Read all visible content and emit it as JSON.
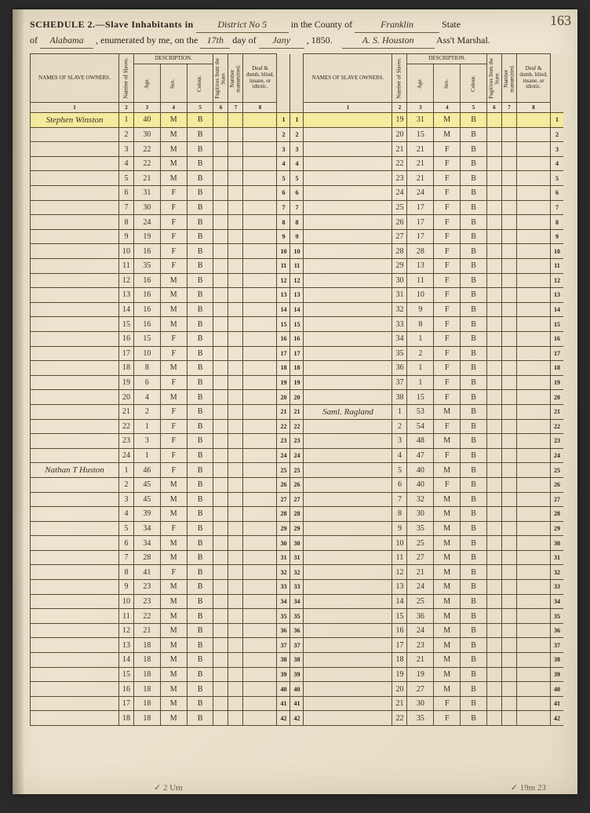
{
  "pagenum": "163",
  "header": {
    "schedule_label": "SCHEDULE 2.—Slave Inhabitants in",
    "district": "District No 5",
    "county_label": "in the County of",
    "county": "Franklin",
    "state_label": "State",
    "state_of": "of",
    "state": "Alabama",
    "enum_label": ", enumerated by me, on the",
    "day": "17th",
    "day_label": "day of",
    "month": "Jany",
    "year_label": ", 185",
    "year_digit": "0.",
    "marshal": "A. S. Houston",
    "marshal_label": "Ass't Marshal."
  },
  "columns": {
    "owner": "NAMES OF SLAVE OWNERS.",
    "num_slaves": "Number of Slaves.",
    "description": "DESCRIPTION.",
    "age": "Age.",
    "sex": "Sex.",
    "colour": "Colour.",
    "fugitive": "Fugitives from the State.",
    "manumitted": "Number manumitted.",
    "deaf": "Deaf & dumb, blind, insane, or idiotic.",
    "nums": [
      "1",
      "2",
      "3",
      "4",
      "5",
      "6",
      "7",
      "8"
    ]
  },
  "left_rows": [
    {
      "owner": "Stephen Winston",
      "n": "1",
      "age": "40",
      "sex": "M",
      "col": "B",
      "hl": true
    },
    {
      "owner": "",
      "n": "2",
      "age": "30",
      "sex": "M",
      "col": "B"
    },
    {
      "owner": "",
      "n": "3",
      "age": "22",
      "sex": "M",
      "col": "B"
    },
    {
      "owner": "",
      "n": "4",
      "age": "22",
      "sex": "M",
      "col": "B"
    },
    {
      "owner": "",
      "n": "5",
      "age": "21",
      "sex": "M",
      "col": "B"
    },
    {
      "owner": "",
      "n": "6",
      "age": "31",
      "sex": "F",
      "col": "B"
    },
    {
      "owner": "",
      "n": "7",
      "age": "30",
      "sex": "F",
      "col": "B"
    },
    {
      "owner": "",
      "n": "8",
      "age": "24",
      "sex": "F",
      "col": "B"
    },
    {
      "owner": "",
      "n": "9",
      "age": "19",
      "sex": "F",
      "col": "B"
    },
    {
      "owner": "",
      "n": "10",
      "age": "16",
      "sex": "F",
      "col": "B"
    },
    {
      "owner": "",
      "n": "11",
      "age": "35",
      "sex": "F",
      "col": "B"
    },
    {
      "owner": "",
      "n": "12",
      "age": "16",
      "sex": "M",
      "col": "B"
    },
    {
      "owner": "",
      "n": "13",
      "age": "16",
      "sex": "M",
      "col": "B"
    },
    {
      "owner": "",
      "n": "14",
      "age": "16",
      "sex": "M",
      "col": "B"
    },
    {
      "owner": "",
      "n": "15",
      "age": "16",
      "sex": "M",
      "col": "B"
    },
    {
      "owner": "",
      "n": "16",
      "age": "15",
      "sex": "F",
      "col": "B"
    },
    {
      "owner": "",
      "n": "17",
      "age": "10",
      "sex": "F",
      "col": "B"
    },
    {
      "owner": "",
      "n": "18",
      "age": "8",
      "sex": "M",
      "col": "B"
    },
    {
      "owner": "",
      "n": "19",
      "age": "6",
      "sex": "F",
      "col": "B"
    },
    {
      "owner": "",
      "n": "20",
      "age": "4",
      "sex": "M",
      "col": "B"
    },
    {
      "owner": "",
      "n": "21",
      "age": "2",
      "sex": "F",
      "col": "B"
    },
    {
      "owner": "",
      "n": "22",
      "age": "1",
      "sex": "F",
      "col": "B"
    },
    {
      "owner": "",
      "n": "23",
      "age": "3",
      "sex": "F",
      "col": "B"
    },
    {
      "owner": "",
      "n": "24",
      "age": "1",
      "sex": "F",
      "col": "B"
    },
    {
      "owner": "Nathan T Huston",
      "n": "1",
      "age": "46",
      "sex": "F",
      "col": "B"
    },
    {
      "owner": "",
      "n": "2",
      "age": "45",
      "sex": "M",
      "col": "B"
    },
    {
      "owner": "",
      "n": "3",
      "age": "45",
      "sex": "M",
      "col": "B"
    },
    {
      "owner": "",
      "n": "4",
      "age": "39",
      "sex": "M",
      "col": "B"
    },
    {
      "owner": "",
      "n": "5",
      "age": "34",
      "sex": "F",
      "col": "B"
    },
    {
      "owner": "",
      "n": "6",
      "age": "34",
      "sex": "M",
      "col": "B"
    },
    {
      "owner": "",
      "n": "7",
      "age": "28",
      "sex": "M",
      "col": "B"
    },
    {
      "owner": "",
      "n": "8",
      "age": "41",
      "sex": "F",
      "col": "B"
    },
    {
      "owner": "",
      "n": "9",
      "age": "23",
      "sex": "M",
      "col": "B"
    },
    {
      "owner": "",
      "n": "10",
      "age": "23",
      "sex": "M",
      "col": "B"
    },
    {
      "owner": "",
      "n": "11",
      "age": "22",
      "sex": "M",
      "col": "B"
    },
    {
      "owner": "",
      "n": "12",
      "age": "21",
      "sex": "M",
      "col": "B"
    },
    {
      "owner": "",
      "n": "13",
      "age": "18",
      "sex": "M",
      "col": "B"
    },
    {
      "owner": "",
      "n": "14",
      "age": "18",
      "sex": "M",
      "col": "B"
    },
    {
      "owner": "",
      "n": "15",
      "age": "18",
      "sex": "M",
      "col": "B"
    },
    {
      "owner": "",
      "n": "16",
      "age": "18",
      "sex": "M",
      "col": "B"
    },
    {
      "owner": "",
      "n": "17",
      "age": "18",
      "sex": "M",
      "col": "B"
    },
    {
      "owner": "",
      "n": "18",
      "age": "18",
      "sex": "M",
      "col": "B"
    }
  ],
  "right_rows": [
    {
      "owner": "",
      "n": "19",
      "age": "31",
      "sex": "M",
      "col": "B",
      "hl": true
    },
    {
      "owner": "",
      "n": "20",
      "age": "15",
      "sex": "M",
      "col": "B"
    },
    {
      "owner": "",
      "n": "21",
      "age": "21",
      "sex": "F",
      "col": "B"
    },
    {
      "owner": "",
      "n": "22",
      "age": "21",
      "sex": "F",
      "col": "B"
    },
    {
      "owner": "",
      "n": "23",
      "age": "21",
      "sex": "F",
      "col": "B"
    },
    {
      "owner": "",
      "n": "24",
      "age": "24",
      "sex": "F",
      "col": "B"
    },
    {
      "owner": "",
      "n": "25",
      "age": "17",
      "sex": "F",
      "col": "B"
    },
    {
      "owner": "",
      "n": "26",
      "age": "17",
      "sex": "F",
      "col": "B"
    },
    {
      "owner": "",
      "n": "27",
      "age": "17",
      "sex": "F",
      "col": "B"
    },
    {
      "owner": "",
      "n": "28",
      "age": "28",
      "sex": "F",
      "col": "B"
    },
    {
      "owner": "",
      "n": "29",
      "age": "13",
      "sex": "F",
      "col": "B"
    },
    {
      "owner": "",
      "n": "30",
      "age": "11",
      "sex": "F",
      "col": "B"
    },
    {
      "owner": "",
      "n": "31",
      "age": "10",
      "sex": "F",
      "col": "B"
    },
    {
      "owner": "",
      "n": "32",
      "age": "9",
      "sex": "F",
      "col": "B"
    },
    {
      "owner": "",
      "n": "33",
      "age": "8",
      "sex": "F",
      "col": "B"
    },
    {
      "owner": "",
      "n": "34",
      "age": "1",
      "sex": "F",
      "col": "B"
    },
    {
      "owner": "",
      "n": "35",
      "age": "2",
      "sex": "F",
      "col": "B"
    },
    {
      "owner": "",
      "n": "36",
      "age": "1",
      "sex": "F",
      "col": "B"
    },
    {
      "owner": "",
      "n": "37",
      "age": "1",
      "sex": "F",
      "col": "B"
    },
    {
      "owner": "",
      "n": "38",
      "age": "15",
      "sex": "F",
      "col": "B"
    },
    {
      "owner": "Saml. Ragland",
      "n": "1",
      "age": "53",
      "sex": "M",
      "col": "B"
    },
    {
      "owner": "",
      "n": "2",
      "age": "54",
      "sex": "F",
      "col": "B"
    },
    {
      "owner": "",
      "n": "3",
      "age": "48",
      "sex": "M",
      "col": "B"
    },
    {
      "owner": "",
      "n": "4",
      "age": "47",
      "sex": "F",
      "col": "B"
    },
    {
      "owner": "",
      "n": "5",
      "age": "40",
      "sex": "M",
      "col": "B"
    },
    {
      "owner": "",
      "n": "6",
      "age": "40",
      "sex": "F",
      "col": "B"
    },
    {
      "owner": "",
      "n": "7",
      "age": "32",
      "sex": "M",
      "col": "B"
    },
    {
      "owner": "",
      "n": "8",
      "age": "30",
      "sex": "M",
      "col": "B"
    },
    {
      "owner": "",
      "n": "9",
      "age": "35",
      "sex": "M",
      "col": "B"
    },
    {
      "owner": "",
      "n": "10",
      "age": "25",
      "sex": "M",
      "col": "B"
    },
    {
      "owner": "",
      "n": "11",
      "age": "27",
      "sex": "M",
      "col": "B"
    },
    {
      "owner": "",
      "n": "12",
      "age": "21",
      "sex": "M",
      "col": "B"
    },
    {
      "owner": "",
      "n": "13",
      "age": "24",
      "sex": "M",
      "col": "B"
    },
    {
      "owner": "",
      "n": "14",
      "age": "25",
      "sex": "M",
      "col": "B"
    },
    {
      "owner": "",
      "n": "15",
      "age": "36",
      "sex": "M",
      "col": "B"
    },
    {
      "owner": "",
      "n": "16",
      "age": "24",
      "sex": "M",
      "col": "B"
    },
    {
      "owner": "",
      "n": "17",
      "age": "23",
      "sex": "M",
      "col": "B"
    },
    {
      "owner": "",
      "n": "18",
      "age": "21",
      "sex": "M",
      "col": "B"
    },
    {
      "owner": "",
      "n": "19",
      "age": "19",
      "sex": "M",
      "col": "B"
    },
    {
      "owner": "",
      "n": "20",
      "age": "27",
      "sex": "M",
      "col": "B"
    },
    {
      "owner": "",
      "n": "21",
      "age": "30",
      "sex": "F",
      "col": "B"
    },
    {
      "owner": "",
      "n": "22",
      "age": "35",
      "sex": "F",
      "col": "B"
    }
  ],
  "bottom_left": "✓ 2 Um",
  "bottom_right": "✓ 19m 23"
}
